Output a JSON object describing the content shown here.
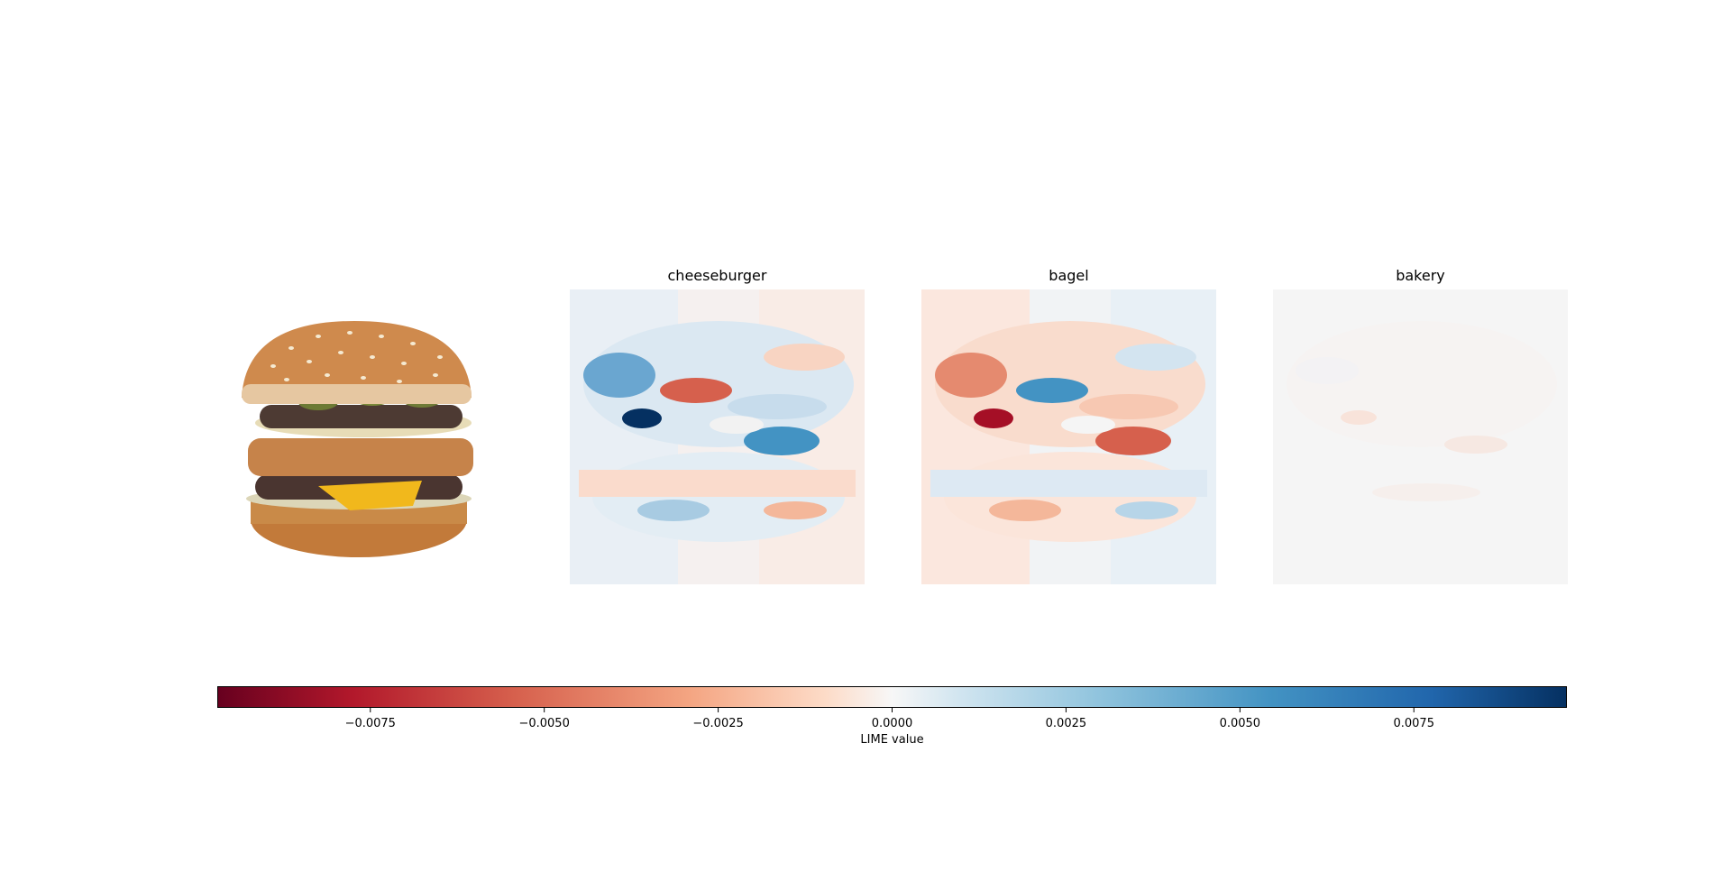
{
  "panels": [
    {
      "title": "",
      "kind": "input-image"
    },
    {
      "title": "cheeseburger",
      "kind": "lime-map"
    },
    {
      "title": "bagel",
      "kind": "lime-map"
    },
    {
      "title": "bakery",
      "kind": "lime-map"
    }
  ],
  "chart_data": {
    "type": "heatmap",
    "title": "",
    "panel_titles": [
      "cheeseburger",
      "bagel",
      "bakery"
    ],
    "colormap": "RdBu",
    "colorbar": {
      "label": "LIME value",
      "range": [
        -0.0097,
        0.0097
      ],
      "ticks": [
        -0.0075,
        -0.005,
        -0.0025,
        0.0,
        0.0025,
        0.005,
        0.0075
      ],
      "tick_labels": [
        "−0.0075",
        "−0.0050",
        "−0.0025",
        "0.0000",
        "0.0025",
        "0.0050",
        "0.0075"
      ]
    },
    "colors": {
      "strong_negative": "#67001f",
      "negative": "#d6604d",
      "neutral": "#f7f7f7",
      "positive": "#4393c3",
      "strong_positive": "#053061"
    },
    "approx_max_abs_by_panel": {
      "cheeseburger": 0.0097,
      "bagel": 0.0097,
      "bakery": 0.0013
    }
  }
}
